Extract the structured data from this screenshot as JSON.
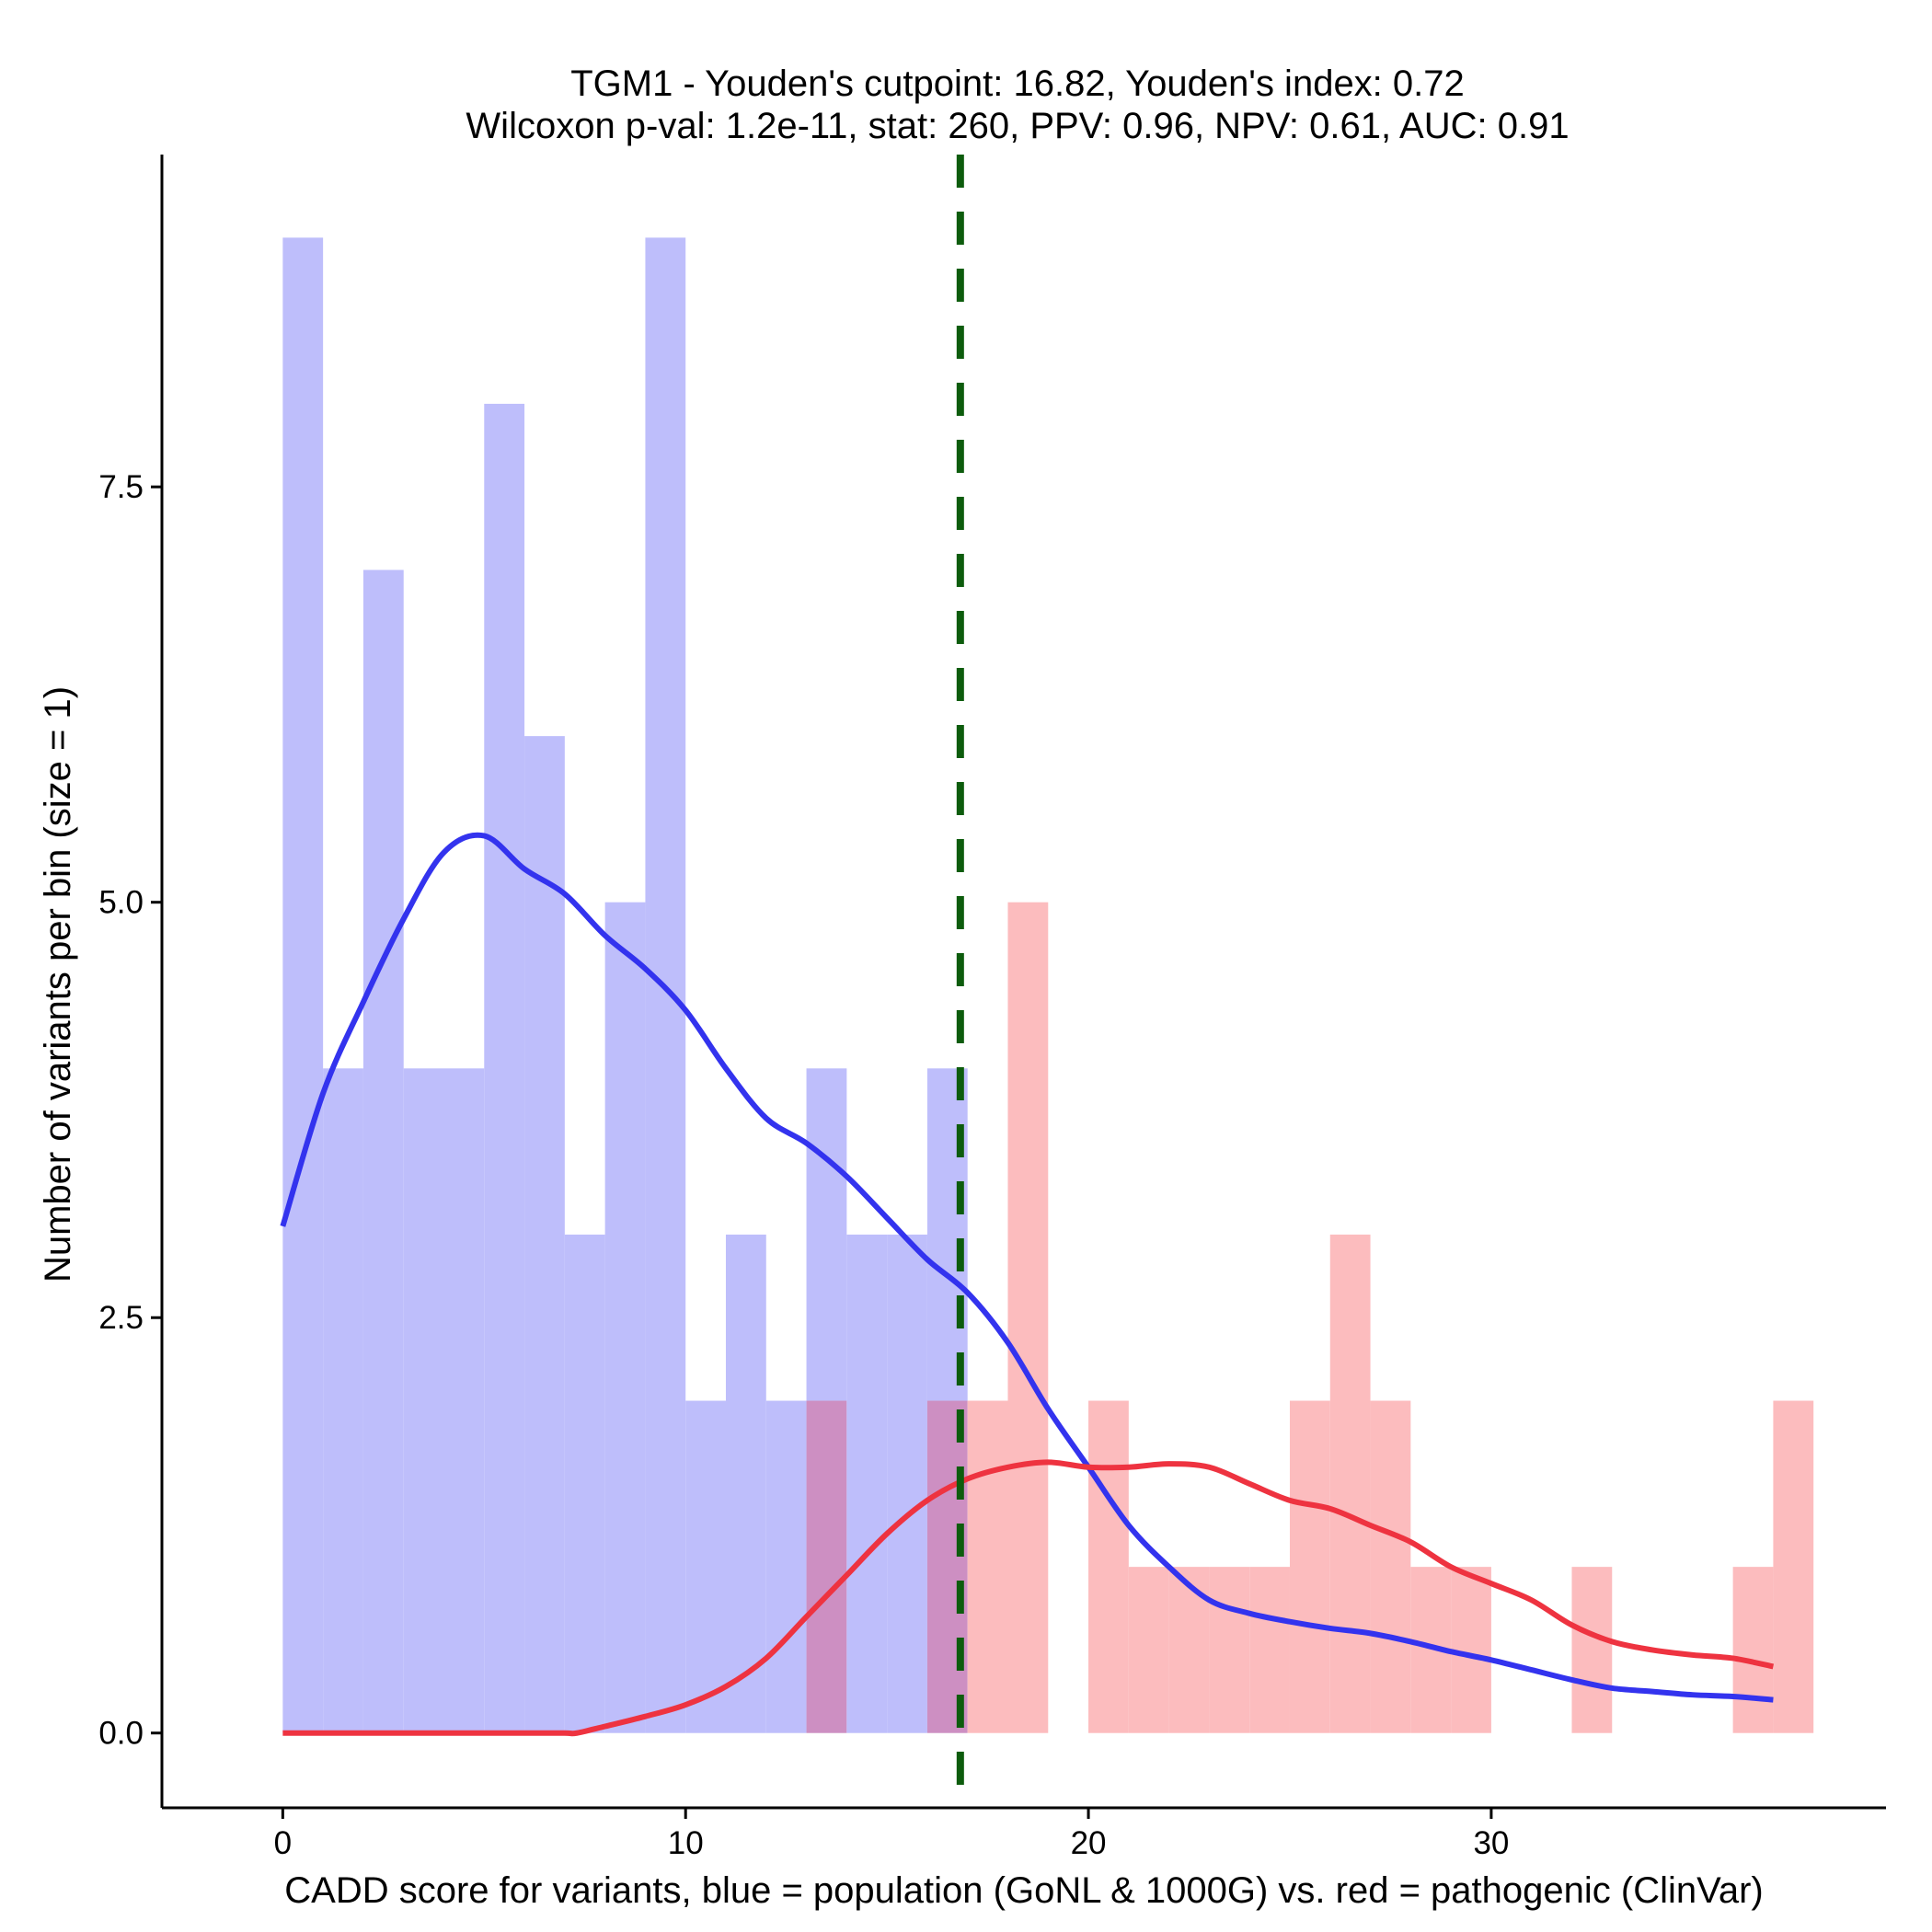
{
  "chart_data": {
    "type": "histogram",
    "title_lines": [
      "TGM1 - Youden's cutpoint: 16.82, Youden's index: 0.72",
      "Wilcoxon p-val: 1.2e-11, stat: 260, PPV: 0.96, NPV: 0.61, AUC: 0.91"
    ],
    "xlabel": "CADD score for variants, blue = population (GoNL & 1000G) vs. red = pathogenic (ClinVar)",
    "ylabel": "Number of variants per bin (size = 1)",
    "xlim": [
      -3,
      39.8
    ],
    "ylim": [
      -0.45,
      9.5
    ],
    "x_ticks": [
      0,
      10,
      20,
      30
    ],
    "x_tick_labels": [
      "0",
      "10",
      "20",
      "30"
    ],
    "y_ticks": [
      0,
      2.5,
      5,
      7.5
    ],
    "y_tick_labels": [
      "0.0",
      "2.5",
      "5.0",
      "7.5"
    ],
    "bin_width": 1,
    "cutpoint": 16.82,
    "colors": {
      "population_bar": "#bebefb",
      "pathogenic_bar": "#fcbcbe",
      "overlap_bar": "#cd8fc2",
      "population_line": "#3333ee",
      "pathogenic_line": "#ee3340",
      "cutpoint_line": "#0d5c0d",
      "axis": "#000000"
    },
    "series": [
      {
        "name": "population (GoNL & 1000G)",
        "bin_starts": [
          0,
          1,
          2,
          3,
          4,
          5,
          6,
          7,
          8,
          9,
          10,
          11,
          12,
          13,
          14,
          15,
          16,
          17,
          18,
          19,
          20,
          21,
          22,
          23,
          24,
          25,
          26,
          27,
          28,
          29,
          30,
          31,
          32,
          33,
          34,
          35,
          36,
          37
        ],
        "values": [
          9,
          4,
          7,
          4,
          4,
          8,
          6,
          3,
          5,
          9,
          2,
          3,
          2,
          4,
          3,
          3,
          4,
          0,
          0,
          0,
          0,
          0,
          0,
          0,
          0,
          0,
          0,
          0,
          0,
          0,
          0,
          0,
          0,
          0,
          0,
          0,
          0,
          0
        ]
      },
      {
        "name": "pathogenic (ClinVar)",
        "bin_starts": [
          0,
          1,
          2,
          3,
          4,
          5,
          6,
          7,
          8,
          9,
          10,
          11,
          12,
          13,
          14,
          15,
          16,
          17,
          18,
          19,
          20,
          21,
          22,
          23,
          24,
          25,
          26,
          27,
          28,
          29,
          30,
          31,
          32,
          33,
          34,
          35,
          36,
          37
        ],
        "values": [
          0,
          0,
          0,
          0,
          0,
          0,
          0,
          0,
          0,
          0,
          0,
          0,
          0,
          2,
          0,
          0,
          2,
          2,
          5,
          0,
          2,
          1,
          1,
          1,
          1,
          2,
          3,
          2,
          1,
          1,
          0,
          0,
          1,
          0,
          0,
          0,
          1,
          2
        ]
      }
    ],
    "density_lines": [
      {
        "name": "population density",
        "x": [
          0,
          1,
          2,
          3,
          4,
          5,
          6,
          7,
          8,
          9,
          10,
          11,
          12,
          13,
          14,
          15,
          16,
          17,
          18,
          19,
          20,
          21,
          22,
          23,
          24,
          25,
          26,
          27,
          28,
          29,
          30,
          31,
          32,
          33,
          34,
          35,
          36,
          37
        ],
        "y": [
          3.05,
          3.85,
          4.4,
          4.9,
          5.3,
          5.4,
          5.2,
          5.05,
          4.8,
          4.6,
          4.35,
          4.0,
          3.7,
          3.55,
          3.35,
          3.1,
          2.85,
          2.65,
          2.35,
          1.95,
          1.6,
          1.25,
          1.0,
          0.8,
          0.72,
          0.67,
          0.63,
          0.6,
          0.55,
          0.49,
          0.44,
          0.38,
          0.32,
          0.27,
          0.25,
          0.23,
          0.22,
          0.2
        ]
      },
      {
        "name": "pathogenic density",
        "x": [
          0,
          1,
          2,
          3,
          4,
          5,
          6,
          7,
          7.3,
          8,
          9,
          10,
          11,
          12,
          13,
          14,
          15,
          16,
          17,
          18,
          19,
          20,
          21,
          22,
          23,
          24,
          25,
          26,
          27,
          28,
          29,
          30,
          31,
          32,
          33,
          34,
          35,
          36,
          37
        ],
        "y": [
          0,
          0,
          0,
          0,
          0,
          0,
          0,
          0,
          0,
          0.04,
          0.1,
          0.17,
          0.28,
          0.45,
          0.7,
          0.95,
          1.2,
          1.4,
          1.53,
          1.6,
          1.63,
          1.6,
          1.6,
          1.62,
          1.6,
          1.5,
          1.4,
          1.35,
          1.25,
          1.15,
          1.0,
          0.9,
          0.8,
          0.65,
          0.55,
          0.5,
          0.47,
          0.45,
          0.4
        ]
      }
    ]
  }
}
